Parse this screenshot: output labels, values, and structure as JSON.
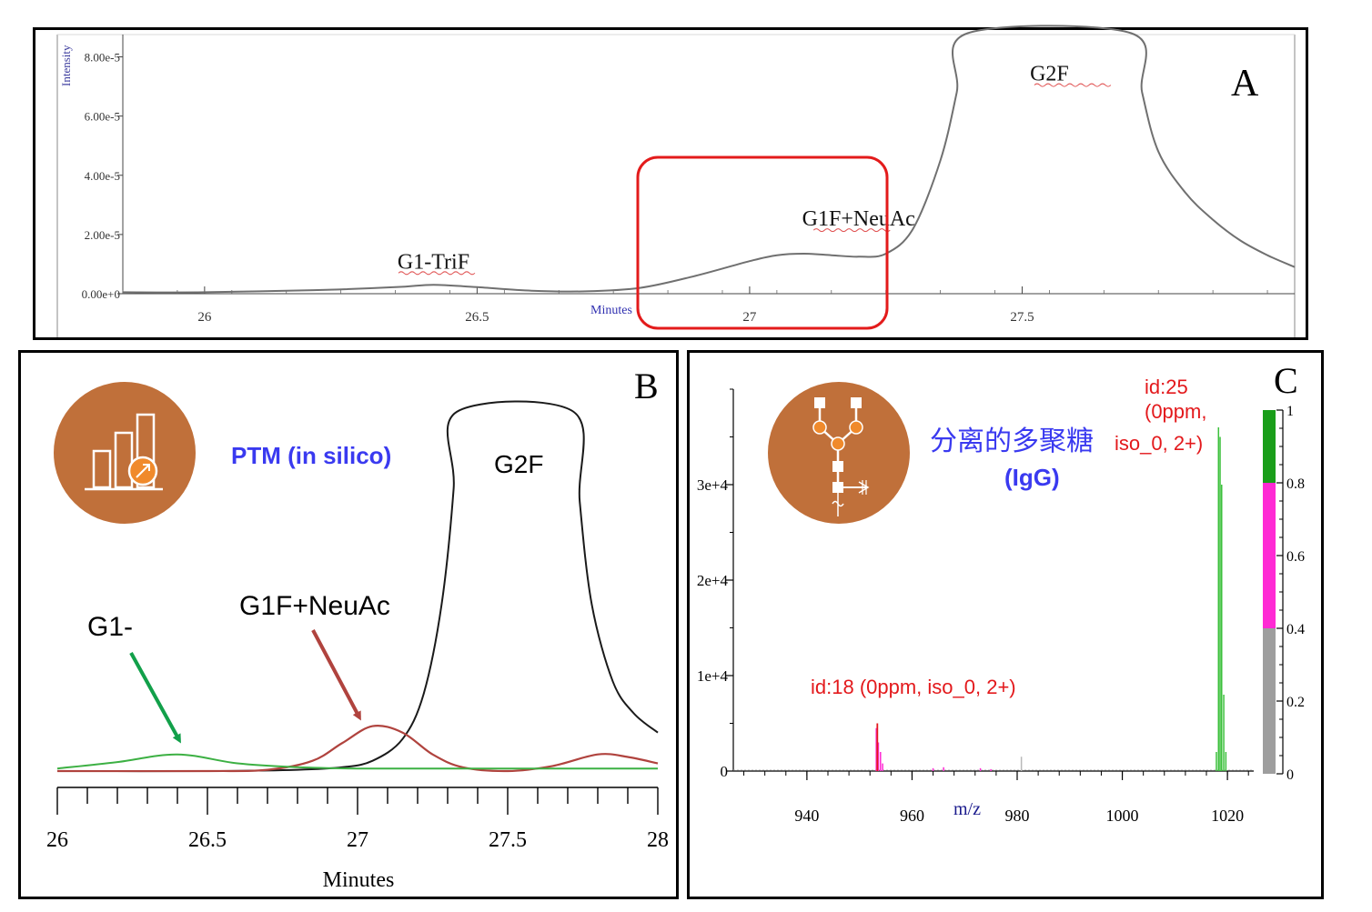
{
  "panel_a": {
    "letter": "A",
    "ylabel": "Intensity",
    "xlabel": "Minutes",
    "chart_data": {
      "type": "line",
      "xlim": [
        25.85,
        28.0
      ],
      "ylim": [
        0,
        8.6
      ],
      "x_ticks": [
        26,
        26.5,
        27,
        27.5
      ],
      "x_tick_labels": [
        "26",
        "26.5",
        "27",
        "27.5"
      ],
      "y_ticks": [
        0,
        2,
        4,
        6,
        8
      ],
      "y_tick_labels": [
        "0.00e+0",
        "2.00e-5",
        "4.00e-5",
        "6.00e-5",
        "8.00e-5"
      ],
      "series": [
        {
          "color": "#707070",
          "x": [
            25.85,
            26.0,
            26.2,
            26.35,
            26.42,
            26.5,
            26.6,
            26.7,
            26.8,
            26.9,
            27.0,
            27.05,
            27.1,
            27.15,
            27.2,
            27.25,
            27.3,
            27.35,
            27.38,
            27.4,
            27.7,
            27.72,
            27.75,
            27.8,
            27.85,
            27.9,
            27.95,
            28.0
          ],
          "y": [
            0.05,
            0.05,
            0.12,
            0.22,
            0.3,
            0.22,
            0.1,
            0.08,
            0.2,
            0.6,
            1.1,
            1.3,
            1.35,
            1.3,
            1.25,
            1.35,
            2.2,
            4.5,
            6.8,
            8.8,
            8.8,
            6.8,
            4.8,
            3.4,
            2.5,
            1.8,
            1.3,
            0.9
          ]
        }
      ],
      "annotations": [
        {
          "text": "G1-TriF",
          "x": 26.42,
          "y": 0.85
        },
        {
          "text": "G1F+NeuAc",
          "x": 27.2,
          "y": 2.3
        },
        {
          "text": "G2F",
          "x": 27.55,
          "y": 7.2
        }
      ]
    }
  },
  "panel_b": {
    "letter": "B",
    "label_ptm": "PTM (in silico)",
    "label_g2f": "G2F",
    "label_g1": "G1-",
    "label_g1f": "G1F+NeuAc",
    "xlabel": "Minutes",
    "chart_data": {
      "type": "line",
      "xlim": [
        26,
        28
      ],
      "x_ticks": [
        26,
        26.5,
        27,
        27.5,
        28
      ],
      "x_tick_labels": [
        "26",
        "26.5",
        "27",
        "27.5",
        "28"
      ],
      "series": [
        {
          "color": "#1a1a1a",
          "x": [
            26.0,
            26.5,
            26.8,
            26.95,
            27.05,
            27.15,
            27.22,
            27.28,
            27.32,
            27.33,
            27.72,
            27.74,
            27.78,
            27.85,
            27.92,
            28.0
          ],
          "y": [
            0.0,
            0.0,
            0.01,
            0.03,
            0.08,
            0.25,
            0.6,
            1.3,
            2.2,
            2.8,
            2.8,
            2.1,
            1.3,
            0.7,
            0.45,
            0.3
          ]
        },
        {
          "color": "#b0433e",
          "x": [
            26.0,
            26.5,
            26.7,
            26.85,
            26.95,
            27.05,
            27.15,
            27.25,
            27.35,
            27.5,
            27.65,
            27.8,
            27.9,
            28.0
          ],
          "y": [
            0.0,
            0.0,
            0.01,
            0.08,
            0.22,
            0.35,
            0.3,
            0.13,
            0.03,
            0.0,
            0.04,
            0.13,
            0.11,
            0.06
          ]
        },
        {
          "color": "#3cb043",
          "x": [
            26.0,
            26.2,
            26.4,
            26.6,
            26.8,
            27.0,
            27.5,
            28.0
          ],
          "y": [
            0.02,
            0.07,
            0.13,
            0.06,
            0.03,
            0.02,
            0.02,
            0.02
          ]
        }
      ]
    }
  },
  "panel_c": {
    "letter": "C",
    "title_cn": "分离的多聚糖",
    "title_igg": "(IgG)",
    "xlabel": "m/z",
    "label_id25_line1": "id:25",
    "label_id25_line2": "(0ppm,",
    "label_id25_line3": "iso_0, 2+)",
    "label_id18": "id:18 (0ppm, iso_0, 2+)",
    "chart_data": {
      "type": "bar",
      "xlim": [
        926,
        1025
      ],
      "ylim": [
        0,
        40000
      ],
      "x_ticks": [
        940,
        960,
        980,
        1000,
        1020
      ],
      "x_tick_labels": [
        "940",
        "960",
        "980",
        "1000",
        "1020"
      ],
      "y_ticks": [
        0,
        10000,
        20000,
        30000
      ],
      "y_tick_labels": [
        "0",
        "1e+4",
        "2e+4",
        "3e+4"
      ],
      "peaks_green": [
        [
          1017.9,
          2000
        ],
        [
          1018.3,
          36000
        ],
        [
          1018.6,
          35000
        ],
        [
          1018.9,
          30000
        ],
        [
          1019.3,
          8000
        ],
        [
          1019.7,
          2000
        ]
      ],
      "peaks_magenta": [
        [
          953.2,
          4500
        ],
        [
          953.6,
          3000
        ],
        [
          954.0,
          2000
        ],
        [
          954.4,
          800
        ],
        [
          964,
          300
        ],
        [
          966,
          400
        ],
        [
          973,
          300
        ],
        [
          975,
          200
        ]
      ],
      "peaks_red": [
        [
          953.4,
          5000
        ]
      ],
      "peaks_grey": [
        [
          980.8,
          1500
        ]
      ],
      "colorbar": {
        "ticks": [
          0,
          0.2,
          0.4,
          0.6,
          0.8,
          1
        ],
        "tick_labels": [
          "0",
          "0.2",
          "0.4",
          "0.6",
          "0.8",
          "1"
        ],
        "segments": [
          {
            "from": 0.0,
            "to": 0.4,
            "color": "#9e9e9e"
          },
          {
            "from": 0.4,
            "to": 0.8,
            "color": "#ff2ad4"
          },
          {
            "from": 0.8,
            "to": 1.0,
            "color": "#1a9e1a"
          }
        ]
      }
    }
  },
  "colors": {
    "icon_fill": "#c0703a",
    "icon_accent": "#f08a2c",
    "blue_text": "#3a3af0",
    "red_text": "#e3191c",
    "highlight_box": "#e31b1b",
    "arrow_green": "#12a04a",
    "arrow_red": "#b0433e"
  }
}
